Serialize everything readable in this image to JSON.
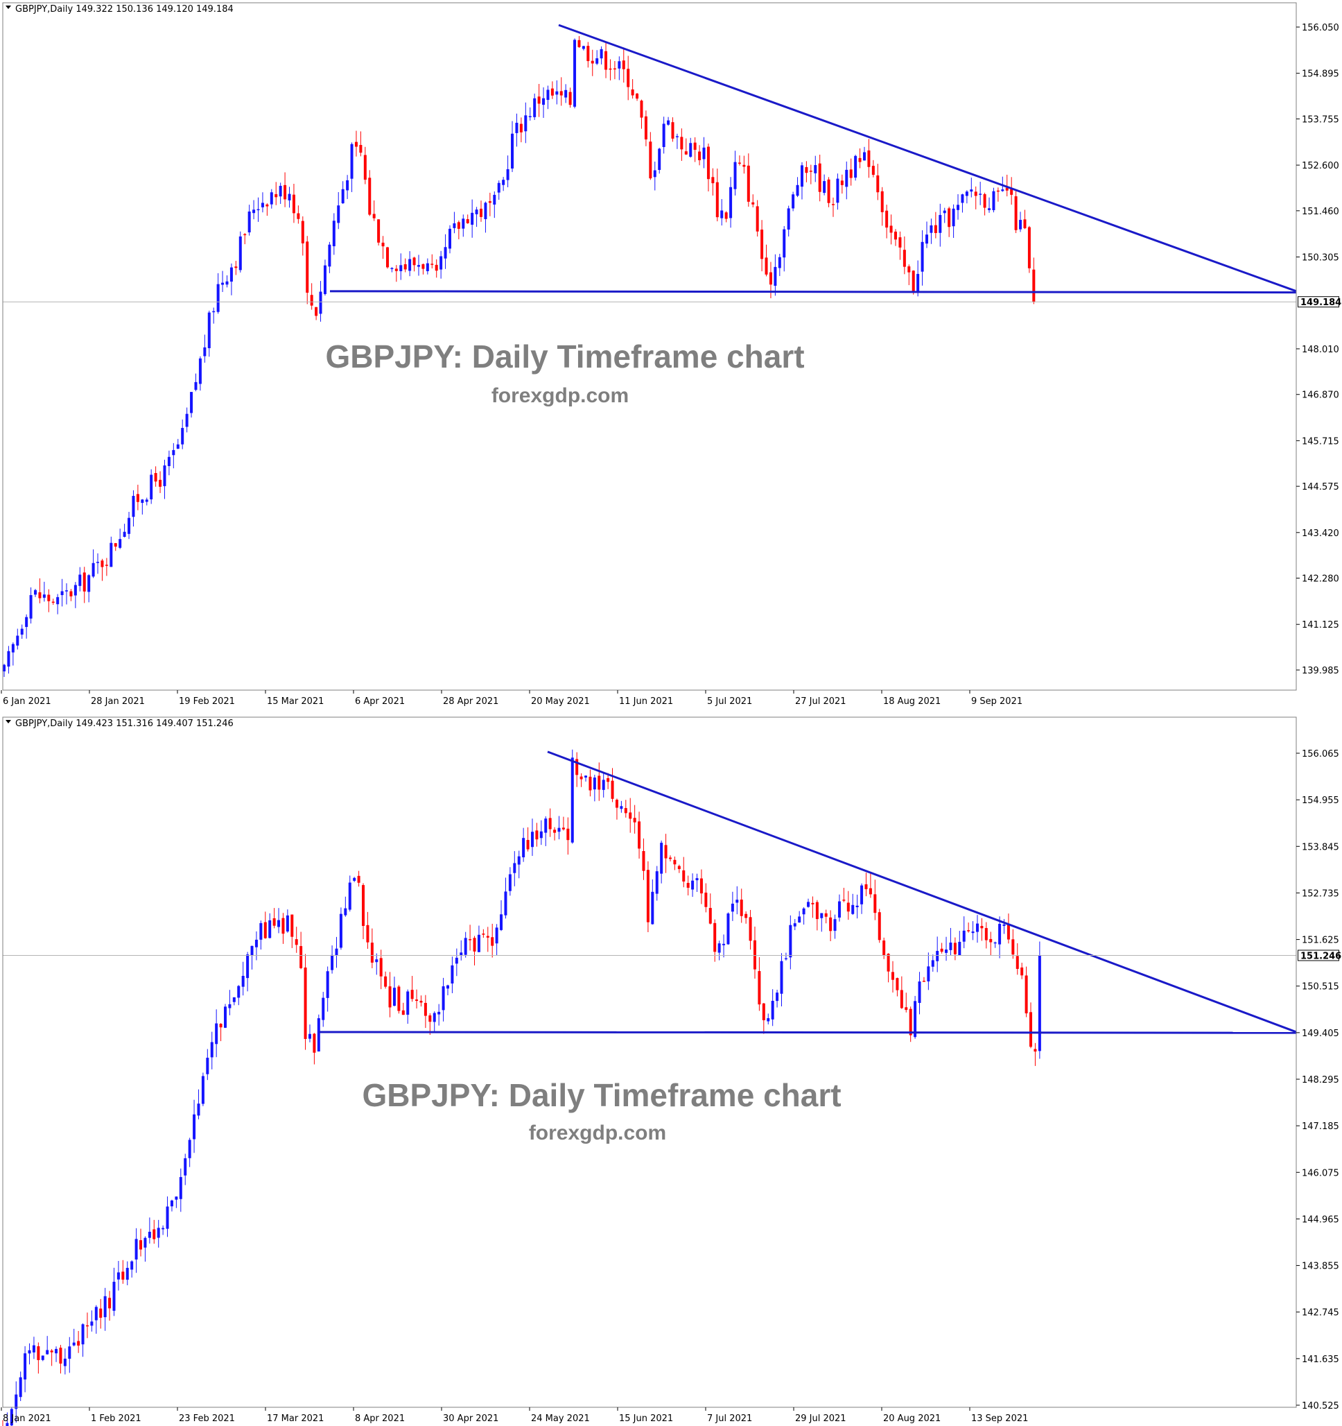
{
  "colors": {
    "bull": "#1414ff",
    "bear": "#ff0000",
    "trendline": "#1a1ac8",
    "current_price_line": "#b4b4b4",
    "frame": "#7f7f7f",
    "watermark": "#7f7f7f"
  },
  "chart_data": [
    {
      "type": "candlestick",
      "symbol_header": "GBPJPY,Daily  149.322 150.136 149.120 149.184",
      "watermark_title": "GBPJPY: Daily Timeframe chart",
      "watermark_subtitle": "forexgdp.com",
      "y_ticks": [
        "156.050",
        "154.895",
        "153.755",
        "152.600",
        "151.460",
        "150.305",
        "148.010",
        "146.870",
        "145.715",
        "144.575",
        "143.420",
        "142.280",
        "141.125",
        "139.985"
      ],
      "x_ticks": [
        "6 Jan 2021",
        "28 Jan 2021",
        "19 Feb 2021",
        "15 Mar 2021",
        "6 Apr 2021",
        "28 Apr 2021",
        "20 May 2021",
        "11 Jun 2021",
        "5 Jul 2021",
        "27 Jul 2021",
        "18 Aug 2021",
        "9 Sep 2021"
      ],
      "ylim": [
        139.4,
        156.65
      ],
      "current_price": "149.184",
      "trendlines": [
        {
          "name": "descending resistance",
          "from": [
            "20 May 2021",
            156.1
          ],
          "to": [
            "right edge",
            149.45
          ]
        },
        {
          "name": "horizontal support",
          "from": [
            "20 Mar 2021",
            149.45
          ],
          "to": [
            "right edge",
            149.42
          ]
        }
      ]
    },
    {
      "type": "candlestick",
      "symbol_header": "GBPJPY,Daily  149.423 151.316 149.407 151.246",
      "watermark_title": "GBPJPY: Daily Timeframe chart",
      "watermark_subtitle": "forexgdp.com",
      "y_ticks": [
        "156.065",
        "154.955",
        "153.845",
        "152.735",
        "151.625",
        "150.515",
        "149.405",
        "148.295",
        "147.185",
        "146.075",
        "144.965",
        "143.855",
        "142.745",
        "141.635",
        "140.525"
      ],
      "x_ticks": [
        "8 Jan 2021",
        "1 Feb 2021",
        "23 Feb 2021",
        "17 Mar 2021",
        "8 Apr 2021",
        "30 Apr 2021",
        "24 May 2021",
        "15 Jun 2021",
        "7 Jul 2021",
        "29 Jul 2021",
        "20 Aug 2021",
        "13 Sep 2021"
      ],
      "ylim": [
        140.0,
        156.15
      ],
      "current_price": "151.246",
      "trendlines": [
        {
          "name": "descending resistance",
          "from": [
            "24 May 2021",
            156.1
          ],
          "to": [
            "right edge",
            149.42
          ]
        },
        {
          "name": "horizontal support",
          "from": [
            "20 Mar 2021",
            149.42
          ],
          "to": [
            "right edge",
            149.4
          ]
        }
      ]
    }
  ]
}
